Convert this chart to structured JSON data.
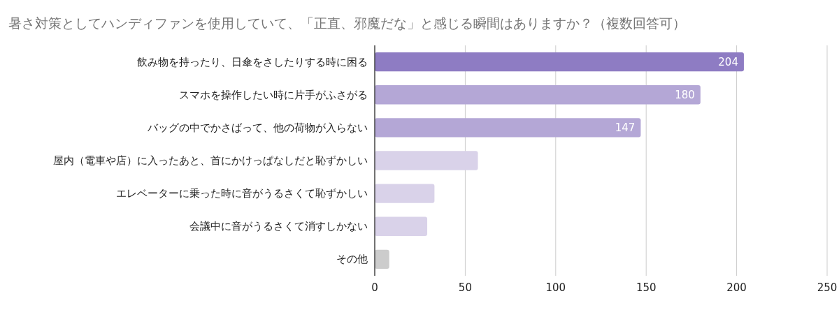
{
  "chart_data": {
    "type": "bar",
    "orientation": "horizontal",
    "title": "暑さ対策としてハンディファンを使用していて、「正直、邪魔だな」と感じる瞬間はありますか？（複数回答可）",
    "categories": [
      "飲み物を持ったり、日傘をさしたりする時に困る",
      "スマホを操作したい時に片手がふさがる",
      "バッグの中でかさばって、他の荷物が入らない",
      "屋内（電車や店）に入ったあと、首にかけっぱなしだと恥ずかしい",
      "エレベーターに乗った時に音がうるさくて恥ずかしい",
      "会議中に音がうるさくて消すしかない",
      "その他"
    ],
    "values": [
      204,
      180,
      147,
      57,
      33,
      29,
      8
    ],
    "value_labels": [
      "204",
      "180",
      "147",
      null,
      null,
      null,
      null
    ],
    "colors": [
      "#8e7cc3",
      "#b4a7d6",
      "#b4a7d6",
      "#d9d2e9",
      "#d9d2e9",
      "#d9d2e9",
      "#cccccc"
    ],
    "xlim": [
      0,
      250
    ],
    "xticks": [
      0,
      50,
      100,
      150,
      200,
      250
    ],
    "grid": "x"
  }
}
